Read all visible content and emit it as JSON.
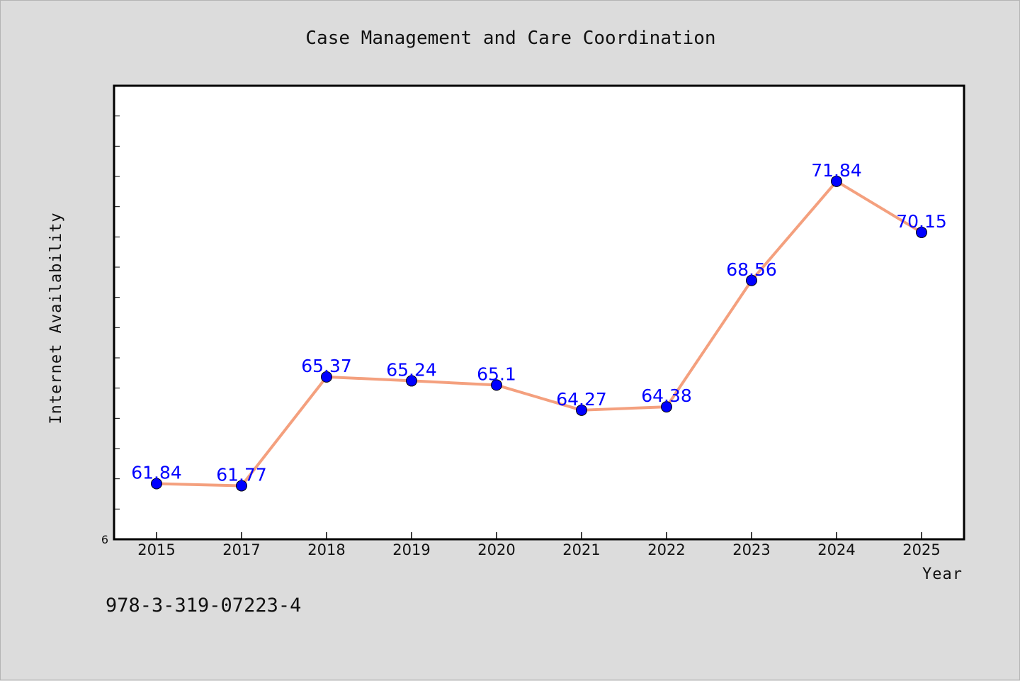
{
  "footer": {
    "code": "978-3-319-07223-4"
  },
  "colors": {
    "background": "#dcdcdc",
    "plot_background": "#ffffff",
    "line": "#f4a07e",
    "marker": "#0000ff",
    "label": "#0000ff"
  },
  "chart_data": {
    "type": "line",
    "title": "Case Management and Care Coordination",
    "xlabel": "Year",
    "ylabel": "Internet Availability",
    "categories": [
      "2015",
      "2017",
      "2018",
      "2019",
      "2020",
      "2021",
      "2022",
      "2023",
      "2024",
      "2025"
    ],
    "series": [
      {
        "values": [
          61.84,
          61.77,
          65.37,
          65.24,
          65.1,
          64.27,
          64.38,
          68.56,
          71.84,
          70.15
        ],
        "data_labels": [
          "61.84",
          "61.77",
          "65.37",
          "65.24",
          "65.1",
          "64.27",
          "64.38",
          "68.56",
          "71.84",
          "70.15"
        ]
      }
    ],
    "ylim": [
      60,
      75
    ],
    "y_tick_label": "6",
    "y_tick_step": 1,
    "grid": false,
    "legend": "none",
    "marker": "circle"
  }
}
